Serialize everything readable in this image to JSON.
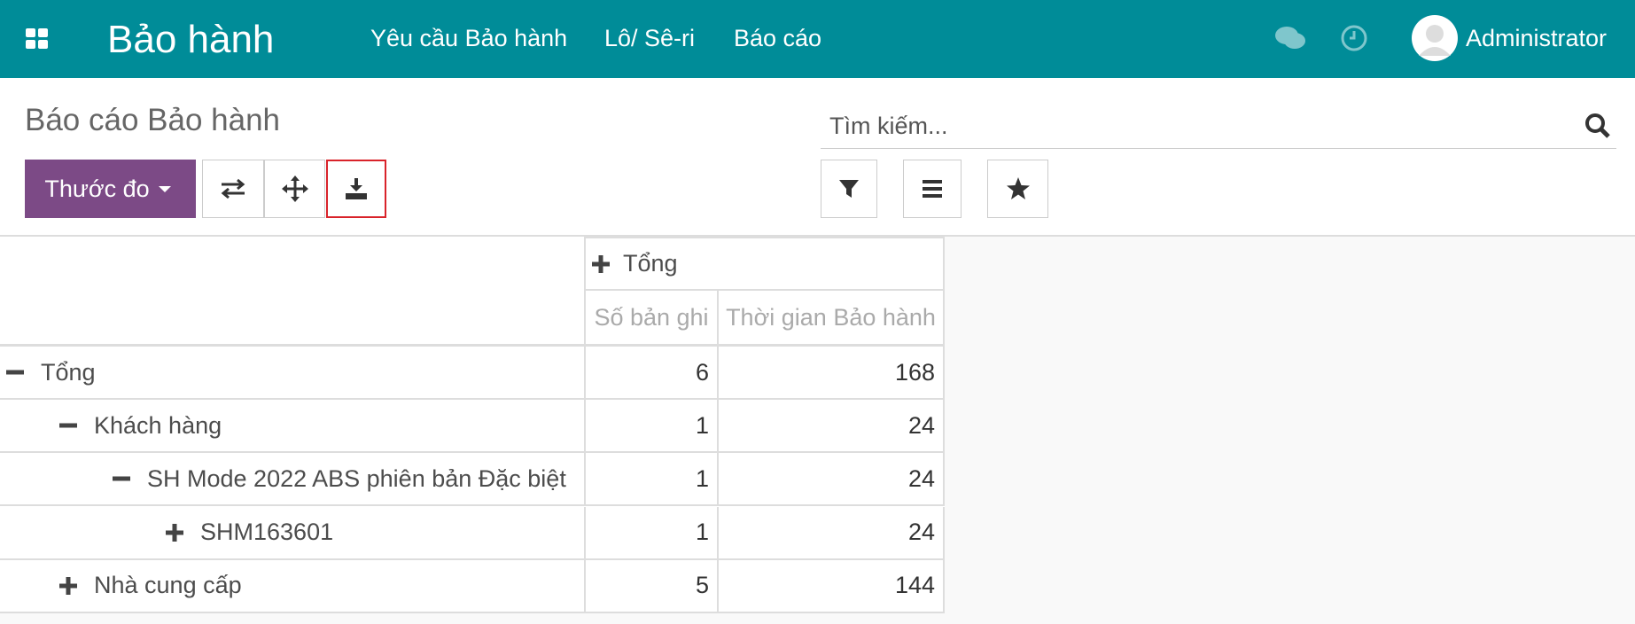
{
  "header": {
    "app_title": "Bảo hành",
    "menu": [
      "Yêu cầu Bảo hành",
      "Lô/ Sê-ri",
      "Báo cáo"
    ],
    "user": "Administrator"
  },
  "control_panel": {
    "breadcrumb": "Báo cáo Bảo hành",
    "search_placeholder": "Tìm kiếm...",
    "measures_button": "Thước đo"
  },
  "pivot": {
    "column_header": "Tổng",
    "measures": [
      "Số bản ghi",
      "Thời gian Bảo hành"
    ],
    "rows": [
      {
        "label": "Tổng",
        "count": "6",
        "duration": "168"
      },
      {
        "label": "Khách hàng",
        "count": "1",
        "duration": "24"
      },
      {
        "label": "SH Mode 2022 ABS phiên bản Đặc biệt",
        "count": "1",
        "duration": "24"
      },
      {
        "label": "SHM163601",
        "count": "1",
        "duration": "24"
      },
      {
        "label": "Nhà cung cấp",
        "count": "5",
        "duration": "144"
      }
    ]
  }
}
